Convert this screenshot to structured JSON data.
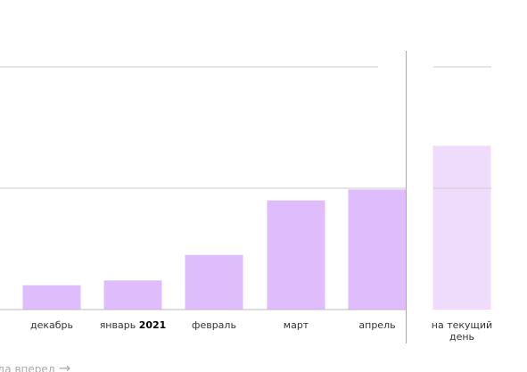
{
  "chart_data": {
    "type": "bar",
    "categories": [
      "декабрь",
      "январь",
      "февраль",
      "март",
      "апрель",
      "на текущий день"
    ],
    "year_marker": "2021",
    "values": [
      0.2,
      0.24,
      0.45,
      0.9,
      0.99,
      1.35
    ],
    "colors": [
      "#dfbdfc",
      "#dfbdfc",
      "#dfbdfc",
      "#dfbdfc",
      "#dfbdfc",
      "#efdcfc"
    ],
    "ylim": [
      0,
      2
    ],
    "yticks": [
      0,
      1,
      2
    ],
    "grid": true
  },
  "footer_link": "да вперед"
}
